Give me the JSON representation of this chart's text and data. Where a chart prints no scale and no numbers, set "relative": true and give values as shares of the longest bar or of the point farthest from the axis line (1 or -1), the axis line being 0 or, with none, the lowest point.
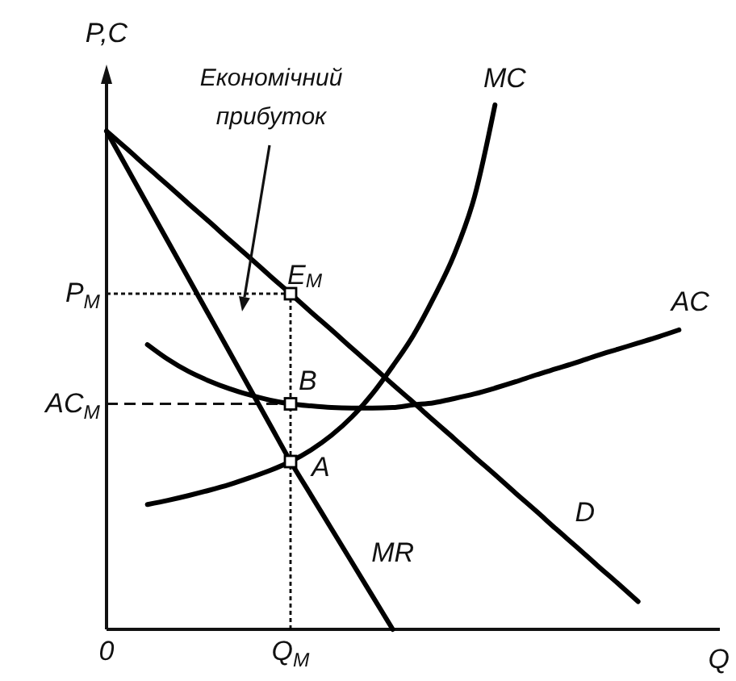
{
  "chart_data": {
    "type": "line",
    "relative": true,
    "ylabel": "P,C",
    "xlabel": "Q",
    "line_style": "solid",
    "categories": [
      "0",
      null,
      null,
      null,
      null,
      null,
      null,
      null,
      null,
      "Q$_{M}$",
      null,
      null,
      null,
      null,
      null,
      null,
      null,
      null,
      null,
      null,
      null,
      null,
      null,
      null,
      null,
      null,
      null,
      null,
      null,
      null,
      null
    ],
    "series": [
      {
        "name": "D",
        "color": "#000000",
        "values": [
          0.95,
          0.916,
          0.881,
          0.847,
          0.812,
          0.778,
          0.743,
          0.709,
          0.674,
          0.64,
          0.605,
          0.571,
          0.536,
          0.502,
          0.467,
          0.433,
          0.398,
          0.364,
          0.329,
          0.295,
          0.26,
          0.226,
          0.191,
          0.157,
          0.122,
          0.088,
          0.053,
          null,
          null,
          null,
          null
        ]
      },
      {
        "name": "MR",
        "color": "#000000",
        "values": [
          0.95,
          0.88,
          0.81,
          0.74,
          0.67,
          0.6,
          0.53,
          0.46,
          0.39,
          0.32,
          0.256,
          0.192,
          0.128,
          0.064,
          0,
          null,
          null,
          null,
          null,
          null,
          null,
          null,
          null,
          null,
          null,
          null,
          null,
          null,
          null,
          null,
          null
        ]
      },
      {
        "name": "MC",
        "color": "#000000",
        "values": [
          null,
          null,
          0.238,
          0.246,
          0.255,
          0.265,
          0.276,
          0.289,
          0.303,
          0.32,
          0.342,
          0.37,
          0.405,
          0.449,
          0.502,
          0.56,
          0.632,
          0.714,
          0.825,
          1,
          null,
          null,
          null,
          null,
          null,
          null,
          null,
          null,
          null,
          null,
          null
        ]
      },
      {
        "name": "AC",
        "color": "#000000",
        "values": [
          null,
          null,
          0.543,
          0.515,
          0.492,
          0.474,
          0.459,
          0.447,
          0.437,
          0.43,
          0.426,
          0.423,
          0.422,
          0.422,
          0.423,
          0.428,
          0.432,
          0.44,
          0.449,
          0.46,
          0.472,
          0.485,
          0.497,
          0.509,
          0.522,
          0.534,
          0.546,
          0.558,
          0.571,
          null,
          null
        ]
      },
      {
        "type": "lollipop",
        "marker": "square",
        "line_style": "dotted",
        "color": "#000000",
        "values": [
          null,
          null,
          null,
          null,
          null,
          null,
          null,
          null,
          null,
          0.64,
          null,
          null,
          null,
          null,
          null,
          null,
          null,
          null,
          null,
          null,
          null,
          null,
          null,
          null,
          null,
          null,
          null,
          null,
          null,
          null,
          null
        ]
      },
      {
        "type": "scatter",
        "marker": "square",
        "color": "#000000",
        "values": [
          null,
          null,
          null,
          null,
          null,
          null,
          null,
          null,
          null,
          0.43,
          null,
          null,
          null,
          null,
          null,
          null,
          null,
          null,
          null,
          null,
          null,
          null,
          null,
          null,
          null,
          null,
          null,
          null,
          null,
          null,
          null
        ]
      },
      {
        "type": "scatter",
        "marker": "square",
        "color": "#000000",
        "values": [
          null,
          null,
          null,
          null,
          null,
          null,
          null,
          null,
          null,
          0.32,
          null,
          null,
          null,
          null,
          null,
          null,
          null,
          null,
          null,
          null,
          null,
          null,
          null,
          null,
          null,
          null,
          null,
          null,
          null,
          null,
          null
        ]
      }
    ],
    "ref_lines": [
      {
        "axis": "y",
        "value": 0.64,
        "label": "P$_{M}$",
        "line_style": "dotted"
      },
      {
        "axis": "y",
        "value": 0.43,
        "label": "AC$_{M}$",
        "line_style": "dashed"
      }
    ],
    "annotations": [
      "Економічний прибуток",
      {
        "text": "E$_{M}$",
        "x": "Q$_{M}$",
        "y": 0.64
      },
      {
        "text": "B",
        "x": "Q$_{M}$",
        "y": 0.43
      },
      {
        "text": "A",
        "x": "Q$_{M}$",
        "y": 0.32
      }
    ]
  }
}
